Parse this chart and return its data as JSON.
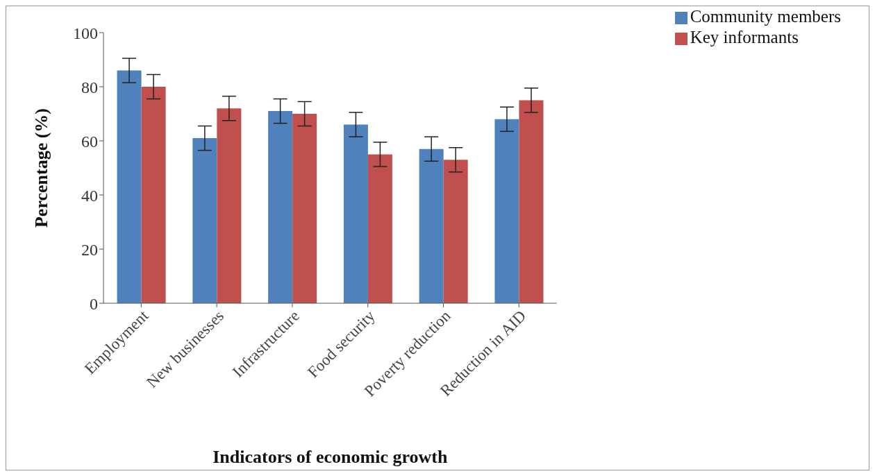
{
  "chart_data": {
    "type": "bar",
    "xlabel": "Indicators of economic growth",
    "ylabel": "Percentage (%)",
    "categories": [
      "Employment",
      "New businesses",
      "Infrastructure",
      "Food security",
      "Poverty reduction",
      "Reduction in AID"
    ],
    "series": [
      {
        "name": "Community members",
        "color": "#4f81bd",
        "values": [
          86,
          61,
          71,
          66,
          57,
          68
        ],
        "errors": [
          4.5,
          4.5,
          4.5,
          4.5,
          4.5,
          4.5
        ]
      },
      {
        "name": "Key informants",
        "color": "#c0504d",
        "values": [
          80,
          72,
          70,
          55,
          53,
          75
        ],
        "errors": [
          4.5,
          4.5,
          4.5,
          4.5,
          4.5,
          4.5
        ]
      }
    ],
    "ylim": [
      0,
      100
    ],
    "yticks": [
      0,
      20,
      40,
      60,
      80,
      100
    ],
    "grid": false,
    "legend": "top right"
  }
}
